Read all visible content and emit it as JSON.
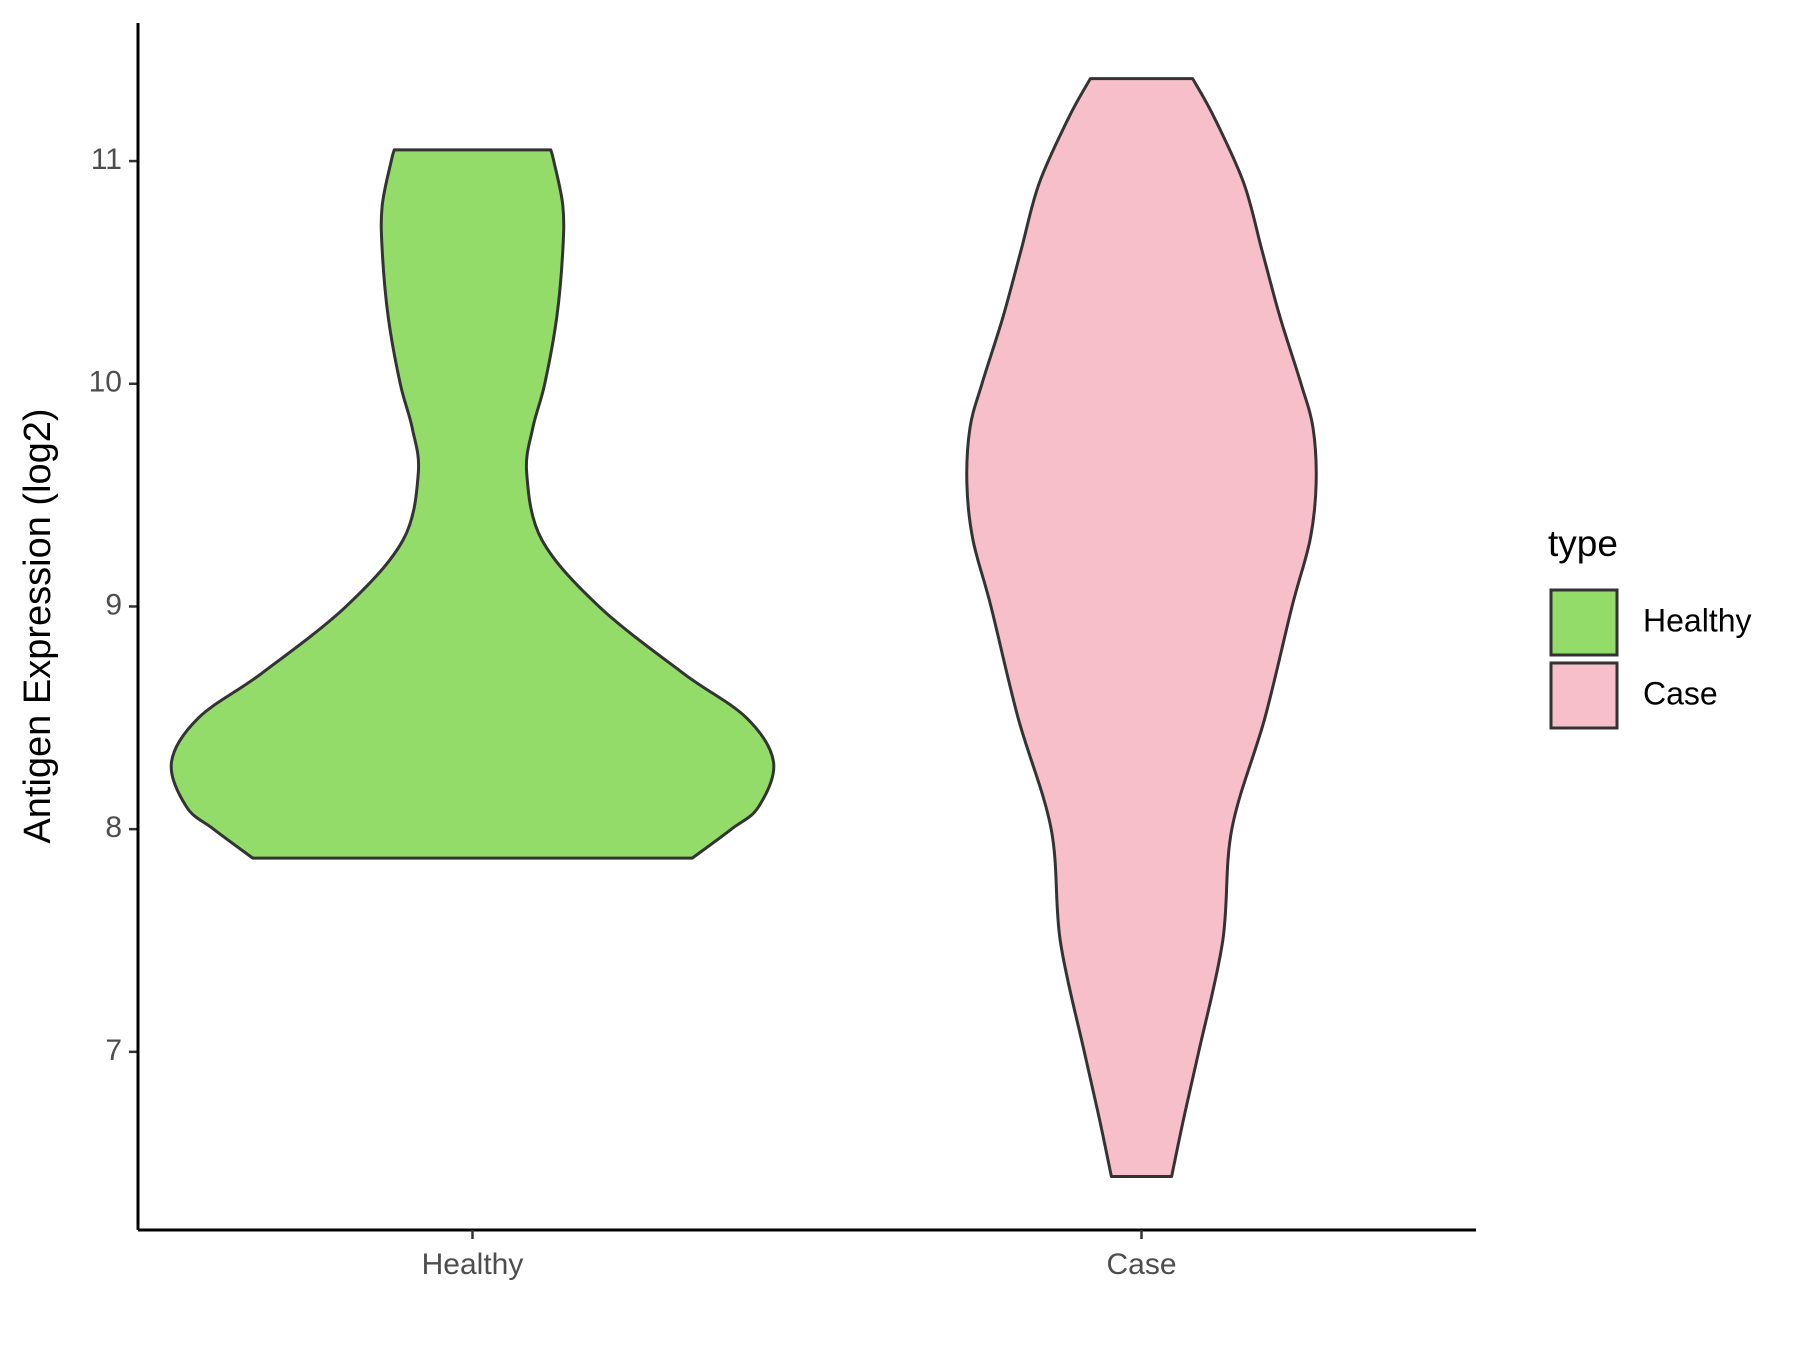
{
  "chart_data": {
    "type": "violin",
    "y_label": "Antigen Expression (log2)",
    "categories": [
      "Healthy",
      "Case"
    ],
    "legend_title": "type",
    "legend_position": "right",
    "ylim": [
      6.2,
      11.62
    ],
    "yticks": [
      7,
      8,
      9,
      10,
      11
    ],
    "series": [
      {
        "name": "Healthy",
        "color": "#93dc6a",
        "y": [
          7.87,
          8.0,
          8.1,
          8.3,
          8.5,
          8.7,
          9.0,
          9.3,
          9.6,
          9.8,
          10.0,
          10.3,
          10.6,
          10.8,
          11.0,
          11.05
        ],
        "density": [
          0.73,
          0.86,
          0.95,
          1.0,
          0.91,
          0.7,
          0.42,
          0.23,
          0.18,
          0.2,
          0.24,
          0.28,
          0.3,
          0.3,
          0.27,
          0.26
        ]
      },
      {
        "name": "Case",
        "color": "#f7bfca",
        "y": [
          6.44,
          6.7,
          7.0,
          7.5,
          8.0,
          8.5,
          9.0,
          9.3,
          9.55,
          9.8,
          10.0,
          10.3,
          10.6,
          10.9,
          11.2,
          11.37
        ],
        "density": [
          0.1,
          0.14,
          0.19,
          0.27,
          0.3,
          0.41,
          0.5,
          0.56,
          0.58,
          0.57,
          0.53,
          0.46,
          0.4,
          0.34,
          0.24,
          0.17
        ]
      }
    ]
  }
}
